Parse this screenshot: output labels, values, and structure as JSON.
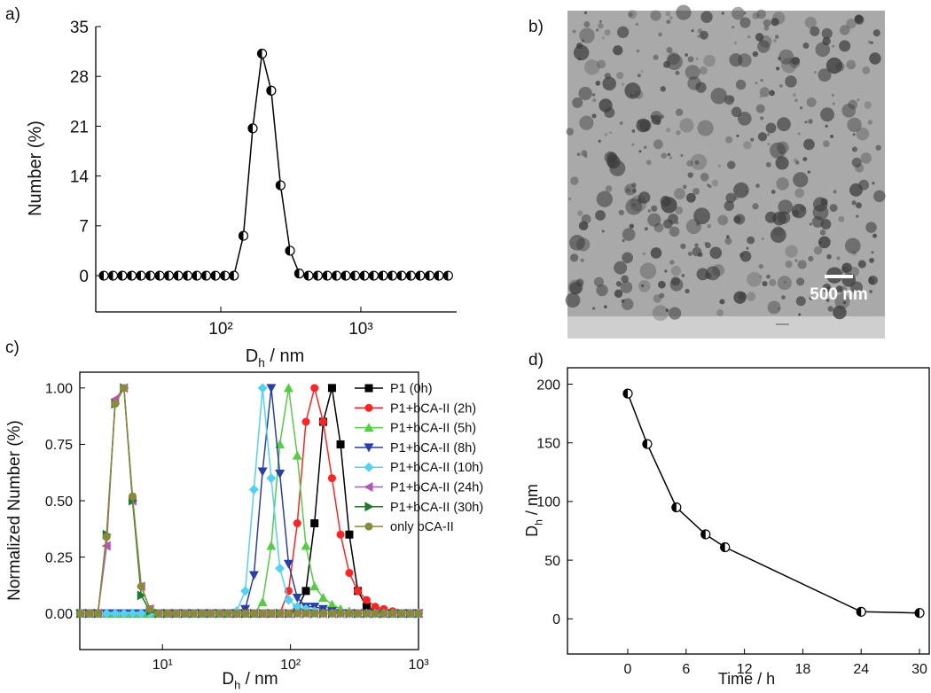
{
  "chart_data": [
    {
      "type": "line",
      "panel_label": "a)",
      "x_label": [
        "D",
        "h",
        " / nm"
      ],
      "y_label": "Number (%)",
      "xscale": "log",
      "xlim": [
        12.8,
        4830
      ],
      "ylim": [
        -5.1,
        35
      ],
      "xticks": [
        {
          "value": 100,
          "label": "10²"
        },
        {
          "value": 1000,
          "label": "10³"
        }
      ],
      "yticks": [
        0,
        7,
        14,
        21,
        28,
        35
      ],
      "color": "#000000",
      "marker": "half-circle",
      "x": [
        14.6,
        17.0,
        19.8,
        23.1,
        26.9,
        31.4,
        36.6,
        42.6,
        49.7,
        57.9,
        67.4,
        78.6,
        91.6,
        107,
        124,
        145,
        169,
        197,
        229,
        267,
        312,
        363,
        423,
        493,
        575,
        670,
        780,
        909,
        1060,
        1235,
        1439,
        1677,
        1954,
        2277,
        2653,
        3092,
        3603,
        4198
      ],
      "values": [
        0,
        0,
        0,
        0,
        0,
        0,
        0,
        0,
        0,
        0,
        0,
        0,
        0,
        0,
        0,
        5.6,
        20.7,
        31.2,
        26,
        12.7,
        3.5,
        0.3,
        0,
        0,
        0,
        0,
        0,
        0,
        0,
        0,
        0,
        0,
        0,
        0,
        0,
        0,
        0,
        0
      ]
    },
    {
      "type": "line",
      "panel_label": "c)",
      "x_label": [
        "D",
        "h",
        " / nm"
      ],
      "y_label": "Normalized Number (%)",
      "xscale": "log",
      "frame": true,
      "xlim": [
        2.26,
        1000
      ],
      "ylim": [
        -0.16,
        1.07
      ],
      "xticks": [
        {
          "value": 10,
          "label": "10¹"
        },
        {
          "value": 100,
          "label": "10²"
        },
        {
          "value": 1000,
          "label": "10³"
        }
      ],
      "yticks": [
        {
          "value": 0,
          "label": "0.00"
        },
        {
          "value": 0.25,
          "label": "0.25"
        },
        {
          "value": 0.5,
          "label": "0.50"
        },
        {
          "value": 0.75,
          "label": "0.75"
        },
        {
          "value": 1,
          "label": "1.00"
        }
      ],
      "x": [
        2.29,
        2.68,
        3.13,
        3.66,
        4.27,
        5.0,
        5.84,
        6.82,
        7.97,
        9.32,
        10.9,
        12.7,
        14.9,
        17.4,
        20.3,
        23.7,
        27.8,
        32.4,
        37.9,
        44.3,
        51.8,
        60.5,
        70.7,
        82.6,
        96.6,
        113,
        132,
        154,
        180,
        211,
        246,
        288,
        336,
        393,
        459,
        536,
        627,
        733,
        857,
        1000
      ],
      "series": [
        {
          "name": "P1 (0h)",
          "color": "#000000",
          "marker": "square",
          "values": [
            0,
            0,
            0,
            0,
            0,
            0,
            0,
            0,
            0,
            0,
            0,
            0,
            0,
            0,
            0,
            0,
            0,
            0,
            0,
            0,
            0,
            0,
            0,
            0,
            0,
            0.02,
            0.1,
            0.4,
            0.85,
            1,
            0.75,
            0.35,
            0.1,
            0.03,
            0.01,
            0,
            0,
            0,
            0,
            0
          ]
        },
        {
          "name": "P1+bCA-II (2h)",
          "color": "#ff2424",
          "marker": "circle",
          "values": [
            0,
            0,
            0,
            0,
            0,
            0,
            0,
            0,
            0,
            0,
            0,
            0,
            0,
            0,
            0,
            0,
            0,
            0,
            0,
            0,
            0,
            0,
            0,
            0,
            0.1,
            0.4,
            0.85,
            1,
            0.85,
            0.6,
            0.35,
            0.18,
            0.1,
            0.06,
            0.03,
            0.02,
            0.01,
            0,
            0,
            0
          ]
        },
        {
          "name": "P1+bCA-II (5h)",
          "color": "#55cc44",
          "marker": "triangle-up",
          "values": [
            0,
            0,
            0,
            0,
            0,
            0,
            0,
            0,
            0,
            0,
            0,
            0,
            0,
            0,
            0,
            0,
            0,
            0,
            0,
            0,
            0,
            0.05,
            0.3,
            0.75,
            1,
            0.7,
            0.3,
            0.12,
            0.07,
            0.04,
            0.02,
            0.01,
            0,
            0,
            0,
            0,
            0,
            0,
            0,
            0
          ]
        },
        {
          "name": "P1+bCA-II (8h)",
          "color": "#2a3fa6",
          "marker": "triangle-down",
          "values": [
            0,
            0,
            0,
            0,
            0,
            0,
            0,
            0,
            0,
            0,
            0,
            0,
            0,
            0,
            0,
            0,
            0,
            0,
            0,
            0.02,
            0.17,
            0.63,
            1,
            0.62,
            0.22,
            0.07,
            0.03,
            0.03,
            0.02,
            0.01,
            0,
            0,
            0,
            0,
            0,
            0,
            0,
            0,
            0,
            0
          ]
        },
        {
          "name": "P1+bCA-II (10h)",
          "color": "#52d2f0",
          "marker": "diamond",
          "values": [
            0,
            0,
            0,
            0,
            0,
            0,
            0,
            0,
            0,
            0,
            0,
            0,
            0,
            0,
            0,
            0,
            0,
            0,
            0.01,
            0.1,
            0.55,
            1,
            0.6,
            0.2,
            0.06,
            0.03,
            0.02,
            0.01,
            0,
            0,
            0,
            0,
            0,
            0,
            0,
            0,
            0,
            0,
            0,
            0
          ]
        },
        {
          "name": "P1+bCA-II (24h)",
          "color": "#c04ec0",
          "marker": "triangle-left",
          "values": [
            0,
            0,
            0,
            0.3,
            0.95,
            1,
            0.5,
            0.12,
            0.02,
            0,
            0,
            0,
            0,
            0,
            0,
            0,
            0,
            0,
            0,
            0,
            0,
            0,
            0,
            0,
            0,
            0,
            0,
            0,
            0,
            0,
            0,
            0,
            0,
            0,
            0,
            0,
            0,
            0,
            0,
            0
          ]
        },
        {
          "name": "P1+bCA-II (30h)",
          "color": "#1b7a2c",
          "marker": "triangle-right",
          "values": [
            0,
            0,
            0,
            0.35,
            0.93,
            1,
            0.5,
            0.08,
            0.01,
            0,
            0,
            0,
            0,
            0,
            0,
            0,
            0,
            0,
            0,
            0,
            0,
            0,
            0,
            0,
            0,
            0,
            0,
            0,
            0,
            0,
            0,
            0,
            0,
            0,
            0,
            0,
            0,
            0,
            0,
            0
          ]
        },
        {
          "name": "only bCA-II",
          "color": "#8a8a3a",
          "marker": "circle",
          "values": [
            0,
            0,
            0,
            0.34,
            0.93,
            1,
            0.52,
            0.12,
            0.02,
            0,
            0,
            0,
            0,
            0,
            0,
            0,
            0,
            0,
            0,
            0,
            0,
            0,
            0,
            0,
            0,
            0,
            0,
            0,
            0,
            0,
            0,
            0,
            0,
            0,
            0,
            0,
            0,
            0,
            0,
            0
          ]
        }
      ]
    },
    {
      "type": "line",
      "panel_label": "d)",
      "x_label": "Time / h",
      "y_label": [
        "D",
        "h",
        " / nm"
      ],
      "frame": true,
      "xlim": [
        -6.2,
        31
      ],
      "ylim": [
        -30,
        214
      ],
      "xticks": [
        0,
        6,
        12,
        18,
        24,
        30
      ],
      "yticks": [
        0,
        50,
        100,
        150,
        200
      ],
      "color": "#000000",
      "marker": "half-circle",
      "x": [
        0,
        2,
        5,
        8,
        10,
        24,
        30
      ],
      "values": [
        192,
        149,
        95,
        72,
        61,
        6,
        5
      ]
    }
  ],
  "image": {
    "panel_label": "b)",
    "scale_bar": "500 nm"
  }
}
